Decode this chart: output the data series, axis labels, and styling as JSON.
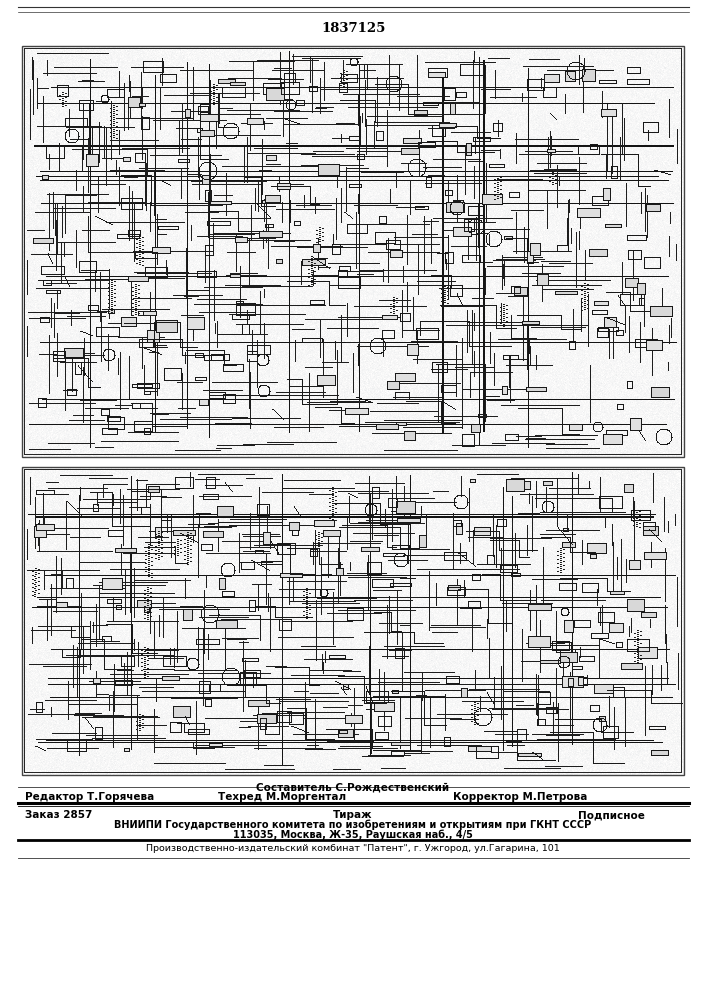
{
  "patent_number": "1837125",
  "bg_color": "#ffffff",
  "diagram_bg": "#f8f6f0",
  "border_color": "#333333",
  "footer_sestavitel": "Составитель С.Рождественский",
  "footer_redaktor": "Редактор Т.Горячева",
  "footer_tehred": "Техред М.Моргентал",
  "footer_korrektor": "Корректор М.Петрова",
  "footer_zakaz": "Заказ 2857",
  "footer_tirazh": "Тираж",
  "footer_podpisnoe": "Подписное",
  "footer_vniiipi": "ВНИИПИ Государственного комитета по изобретениям и открытиям при ГКНТ СССР",
  "footer_address": "113035, Москва, Ж-35, Раушская наб., 4/5",
  "footer_patent_combine": "Производственно-издательский комбинат \"Патент\", г. Ужгород, ул.Гагарина, 101"
}
